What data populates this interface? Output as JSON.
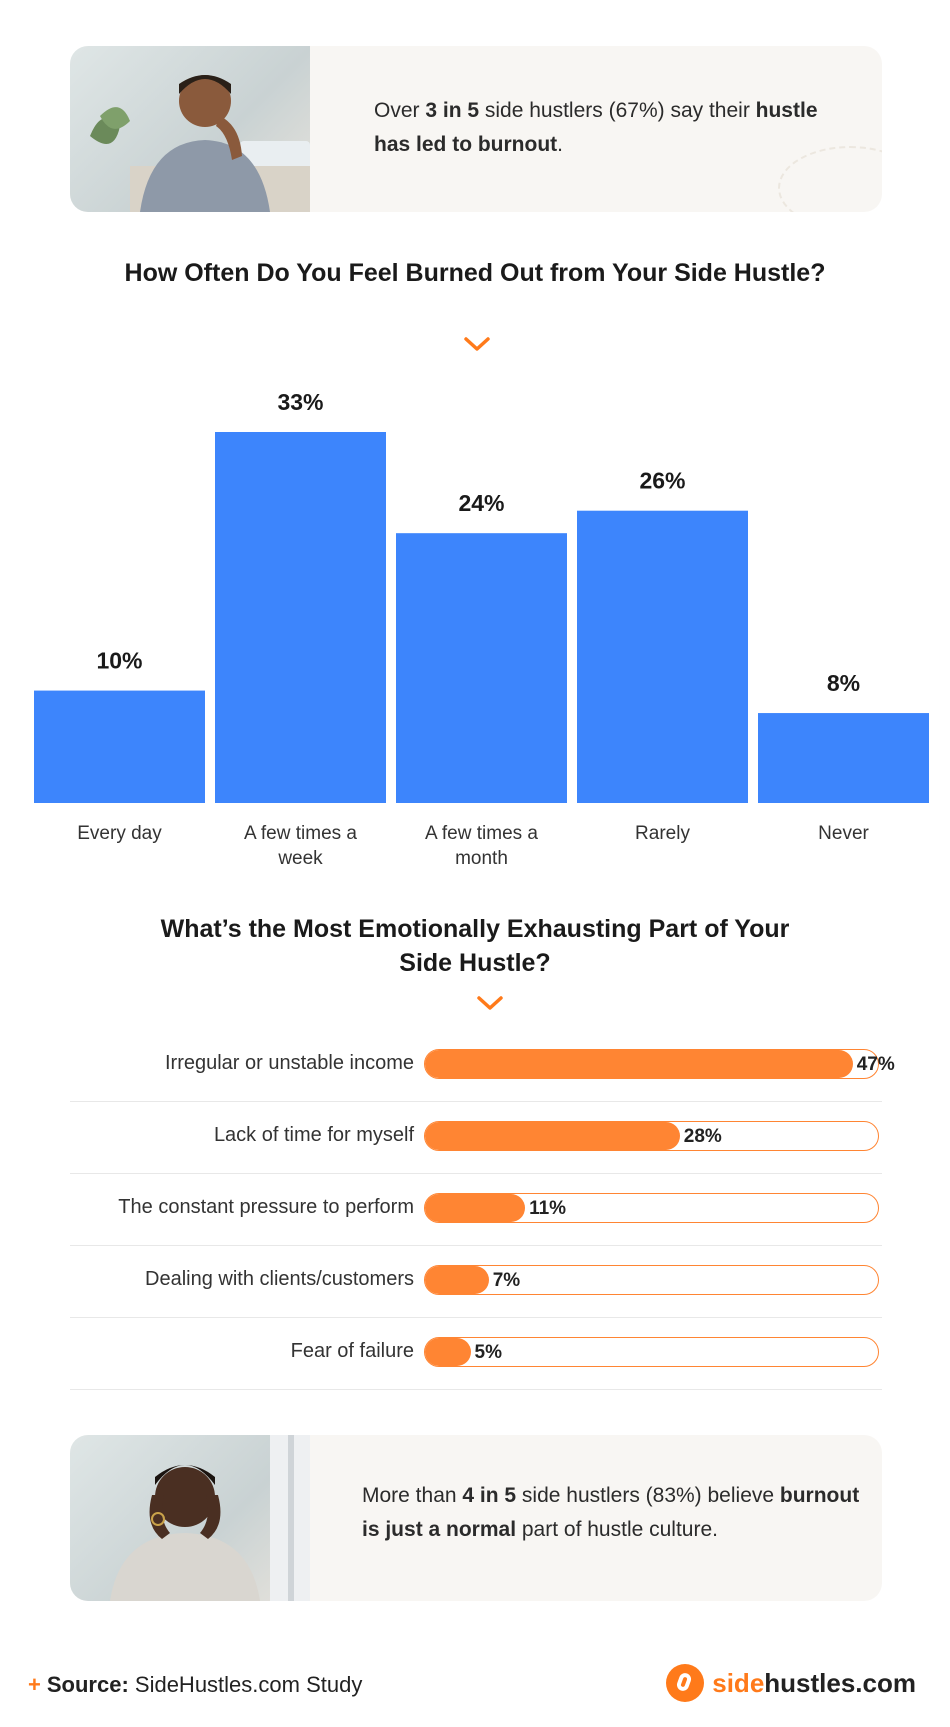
{
  "top_card": {
    "pre": "Over ",
    "bold1": "3 in 5",
    "mid": " side hustlers (67%) say their ",
    "bold2": "hustle has led to burnout",
    "post": "."
  },
  "bottom_card": {
    "pre": "More than ",
    "bold1": "4 in 5",
    "mid": " side hustlers (83%) believe ",
    "bold2": "burnout is just a normal",
    "post": " part of hustle culture."
  },
  "colors": {
    "bar_blue": "#3d85fc",
    "accent_orange": "#ff8533",
    "card_bg": "#f8f6f3"
  },
  "chart_data": [
    {
      "type": "bar",
      "title": "How Often Do You Feel Burned Out from Your Side Hustle?",
      "categories": [
        "Every day",
        "A few times a week",
        "A few times a month",
        "Rarely",
        "Never"
      ],
      "category_lines": [
        [
          "Every day"
        ],
        [
          "A few times a",
          "week"
        ],
        [
          "A few times a",
          "month"
        ],
        [
          "Rarely"
        ],
        [
          "Never"
        ]
      ],
      "values": [
        10,
        33,
        24,
        26,
        8
      ],
      "value_labels": [
        "10%",
        "33%",
        "24%",
        "26%",
        "8%"
      ],
      "ylim": [
        0,
        33
      ],
      "grid": false
    },
    {
      "type": "bar",
      "orientation": "horizontal",
      "title": "What’s the Most Emotionally Exhausting Part of Your Side Hustle?",
      "title_lines": [
        "What’s the Most Emotionally Exhausting Part of Your",
        "Side Hustle?"
      ],
      "categories": [
        "Irregular or unstable income",
        "Lack of time for myself",
        "The constant pressure to perform",
        "Dealing with clients/customers",
        "Fear of failure"
      ],
      "values": [
        47,
        28,
        11,
        7,
        5
      ],
      "value_labels": [
        "47%",
        "28%",
        "11%",
        "7%",
        "5%"
      ],
      "xlim": [
        0,
        50
      ],
      "grid": false
    }
  ],
  "footer": {
    "source_label": "Source:",
    "source_text": " SideHustles.com Study",
    "brand_side": "side",
    "brand_rest": "hustles.com"
  }
}
